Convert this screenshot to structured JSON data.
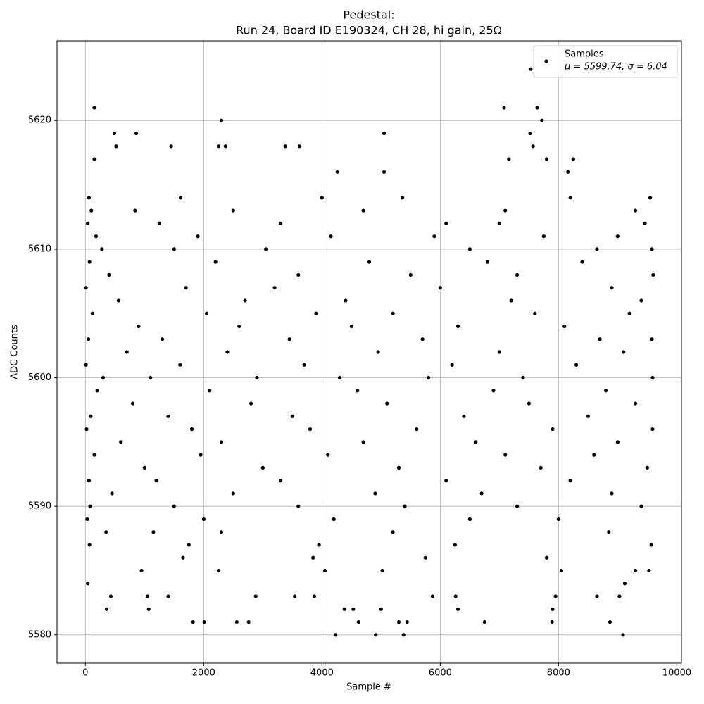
{
  "chart_data": {
    "type": "scatter",
    "title": "Pedestal:",
    "subtitle": "Run 24, Board ID E190324, CH 28, hi gain, 25Ω",
    "xlabel": "Sample #",
    "ylabel": "ADC Counts",
    "xlim": [
      -480,
      10079
    ],
    "ylim": [
      5577.8,
      5626.2
    ],
    "xticks": [
      0,
      2000,
      4000,
      6000,
      8000,
      10000
    ],
    "yticks": [
      5580,
      5590,
      5600,
      5610,
      5620
    ],
    "grid": true,
    "legend": "upper right",
    "legend_stats": "μ = 5599.74, σ = 6.04",
    "series": [
      {
        "name": "Samples",
        "color": "#000000",
        "x": [
          40,
          150,
          150,
          360,
          430,
          490,
          520,
          860,
          1050,
          1070,
          1400,
          1450,
          1820,
          2010,
          2300,
          2250,
          2370,
          2560,
          2760,
          2880,
          3380,
          3540,
          3620,
          3870,
          4230,
          4260,
          4380,
          4530,
          4620,
          4910,
          5000,
          5050,
          5050,
          5300,
          5380,
          5440,
          5870,
          6260,
          6300,
          6750,
          7080,
          7160,
          7530,
          7520,
          7570,
          7640,
          7720,
          7800,
          7890,
          7900,
          7950,
          8160,
          8250,
          8650,
          8870,
          9030,
          9090,
          9120,
          9300,
          60,
          1610,
          4000,
          5360,
          8200,
          9550,
          100,
          840,
          2500,
          4700,
          7100,
          9300,
          40,
          1250,
          3300,
          6100,
          7000,
          9460,
          180,
          1900,
          4150,
          5900,
          7750,
          9000,
          280,
          1500,
          3050,
          6500,
          8650,
          9580,
          70,
          2200,
          4800,
          6800,
          8400,
          400,
          3600,
          5500,
          7300,
          9600,
          10,
          1700,
          3200,
          6000,
          8900,
          560,
          2700,
          4400,
          7200,
          9400,
          120,
          2050,
          3900,
          5200,
          7600,
          9200,
          900,
          2600,
          4500,
          6300,
          8100,
          50,
          1300,
          3450,
          5700,
          8700,
          9580,
          700,
          2400,
          4950,
          7000,
          9100,
          10,
          1600,
          3700,
          6200,
          8300,
          300,
          1100,
          2900,
          4300,
          5800,
          7400,
          9590,
          200,
          2100,
          4600,
          6900,
          8800,
          800,
          2800,
          5100,
          7500,
          9300,
          90,
          1400,
          3500,
          6400,
          8500,
          20,
          1800,
          3800,
          5600,
          7900,
          9590,
          600,
          2300,
          4700,
          6600,
          9000,
          150,
          1950,
          4100,
          7100,
          8600,
          1000,
          3000,
          5300,
          7700,
          9500,
          60,
          1200,
          3300,
          6100,
          8200,
          450,
          2500,
          4900,
          6700,
          8900,
          80,
          1500,
          3600,
          5400,
          7300,
          9400,
          30,
          2000,
          4200,
          6500,
          8000,
          350,
          1150,
          2300,
          5200,
          8850,
          70,
          1750,
          3950,
          6250,
          9570,
          1650,
          3850,
          5750,
          7800,
          950,
          2250,
          4050,
          5020,
          8050,
          9530
        ],
        "values": [
          5584,
          5621,
          5617,
          5582,
          5583,
          5619,
          5618,
          5619,
          5583,
          5582,
          5583,
          5618,
          5581,
          5581,
          5620,
          5618,
          5618,
          5581,
          5581,
          5583,
          5618,
          5583,
          5618,
          5583,
          5580,
          5616,
          5582,
          5582,
          5581,
          5580,
          5582,
          5619,
          5616,
          5581,
          5580,
          5581,
          5583,
          5583,
          5582,
          5581,
          5621,
          5617,
          5624,
          5619,
          5618,
          5621,
          5620,
          5617,
          5581,
          5582,
          5583,
          5616,
          5617,
          5583,
          5581,
          5583,
          5580,
          5584,
          5585,
          5614,
          5614,
          5614,
          5614,
          5614,
          5614,
          5613,
          5613,
          5613,
          5613,
          5613,
          5613,
          5612,
          5612,
          5612,
          5612,
          5612,
          5612,
          5611,
          5611,
          5611,
          5611,
          5611,
          5611,
          5610,
          5610,
          5610,
          5610,
          5610,
          5610,
          5609,
          5609,
          5609,
          5609,
          5609,
          5608,
          5608,
          5608,
          5608,
          5608,
          5607,
          5607,
          5607,
          5607,
          5607,
          5606,
          5606,
          5606,
          5606,
          5606,
          5605,
          5605,
          5605,
          5605,
          5605,
          5605,
          5604,
          5604,
          5604,
          5604,
          5604,
          5603,
          5603,
          5603,
          5603,
          5603,
          5603,
          5602,
          5602,
          5602,
          5602,
          5602,
          5601,
          5601,
          5601,
          5601,
          5601,
          5600,
          5600,
          5600,
          5600,
          5600,
          5600,
          5600,
          5599,
          5599,
          5599,
          5599,
          5599,
          5598,
          5598,
          5598,
          5598,
          5598,
          5597,
          5597,
          5597,
          5597,
          5597,
          5596,
          5596,
          5596,
          5596,
          5596,
          5596,
          5595,
          5595,
          5595,
          5595,
          5595,
          5594,
          5594,
          5594,
          5594,
          5594,
          5593,
          5593,
          5593,
          5593,
          5593,
          5592,
          5592,
          5592,
          5592,
          5592,
          5591,
          5591,
          5591,
          5591,
          5591,
          5590,
          5590,
          5590,
          5590,
          5590,
          5590,
          5589,
          5589,
          5589,
          5589,
          5589,
          5588,
          5588,
          5588,
          5588,
          5588,
          5587,
          5587,
          5587,
          5587,
          5587,
          5586,
          5586,
          5586,
          5586,
          5585,
          5585,
          5585,
          5585,
          5585,
          5585
        ]
      }
    ]
  }
}
